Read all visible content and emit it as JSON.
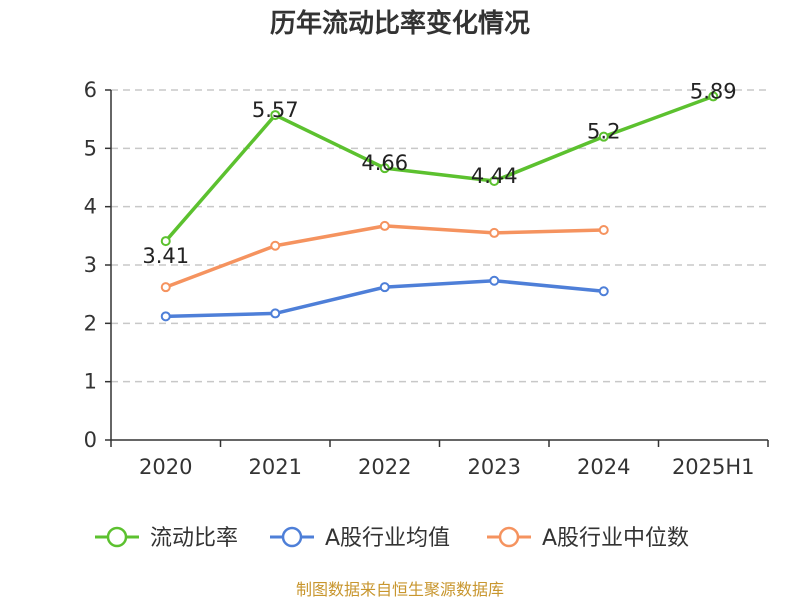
{
  "chart_data": {
    "type": "line",
    "title": "历年流动比率变化情况",
    "categories": [
      "2020",
      "2021",
      "2022",
      "2023",
      "2024",
      "2025H1"
    ],
    "ylim": [
      0,
      6
    ],
    "yticks": [
      0,
      1,
      2,
      3,
      4,
      5,
      6
    ],
    "ytick_labels": [
      "0",
      "1",
      "2",
      "3",
      "4",
      "5",
      "6"
    ],
    "grid": true,
    "legend_position": "bottom",
    "series": [
      {
        "name": "流动比率",
        "color": "#5cc12f",
        "values": [
          3.41,
          5.57,
          4.66,
          4.44,
          5.2,
          5.89
        ],
        "labels": [
          "3.41",
          "5.57",
          "4.66",
          "4.44",
          "5.2",
          "5.89"
        ]
      },
      {
        "name": "A股行业均值",
        "color": "#4e7fd8",
        "values": [
          2.12,
          2.17,
          2.62,
          2.73,
          2.55,
          null
        ]
      },
      {
        "name": "A股行业中位数",
        "color": "#f5935f",
        "values": [
          2.62,
          3.33,
          3.67,
          3.55,
          3.6,
          null
        ]
      }
    ],
    "source": "制图数据来自恒生聚源数据库"
  }
}
